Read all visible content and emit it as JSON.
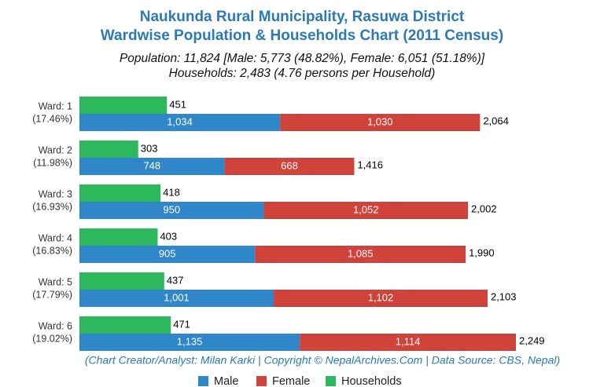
{
  "chart_data": {
    "type": "bar",
    "title": "Naukunda Rural Municipality, Rasuwa District",
    "title2": "Wardwise Population & Households Chart (2011 Census)",
    "subtitle": "Population: 11,824 [Male: 5,773 (48.82%), Female: 6,051 (51.18%)]",
    "subtitle2": "Households: 2,483 (4.76 persons per Household)",
    "footer": "(Chart Creator/Analyst: Milan Karki | Copyright © NepalArchives.Com | Data Source: CBS, Nepal)",
    "categories": [
      "Ward: 1",
      "Ward: 2",
      "Ward: 3",
      "Ward: 4",
      "Ward: 5",
      "Ward: 6"
    ],
    "category_shares": [
      "(17.46%)",
      "(11.98%)",
      "(16.93%)",
      "(16.83%)",
      "(17.79%)",
      "(19.02%)"
    ],
    "series": [
      {
        "name": "Male",
        "color": "#2f86c8",
        "values": [
          1034,
          748,
          950,
          905,
          1001,
          1135
        ],
        "value_labels": [
          "1,034",
          "748",
          "950",
          "905",
          "1,001",
          "1,135"
        ]
      },
      {
        "name": "Female",
        "color": "#d0433a",
        "values": [
          1030,
          668,
          1052,
          1085,
          1102,
          1114
        ],
        "value_labels": [
          "1,030",
          "668",
          "1,052",
          "1,085",
          "1,102",
          "1,114"
        ]
      },
      {
        "name": "Households",
        "color": "#2db85d",
        "values": [
          451,
          303,
          418,
          403,
          437,
          471
        ],
        "value_labels": [
          "451",
          "303",
          "418",
          "403",
          "437",
          "471"
        ]
      }
    ],
    "totals": [
      2064,
      1416,
      2002,
      1990,
      2103,
      2249
    ],
    "total_labels": [
      "2,064",
      "1,416",
      "2,002",
      "1,990",
      "2,103",
      "2,249"
    ]
  }
}
